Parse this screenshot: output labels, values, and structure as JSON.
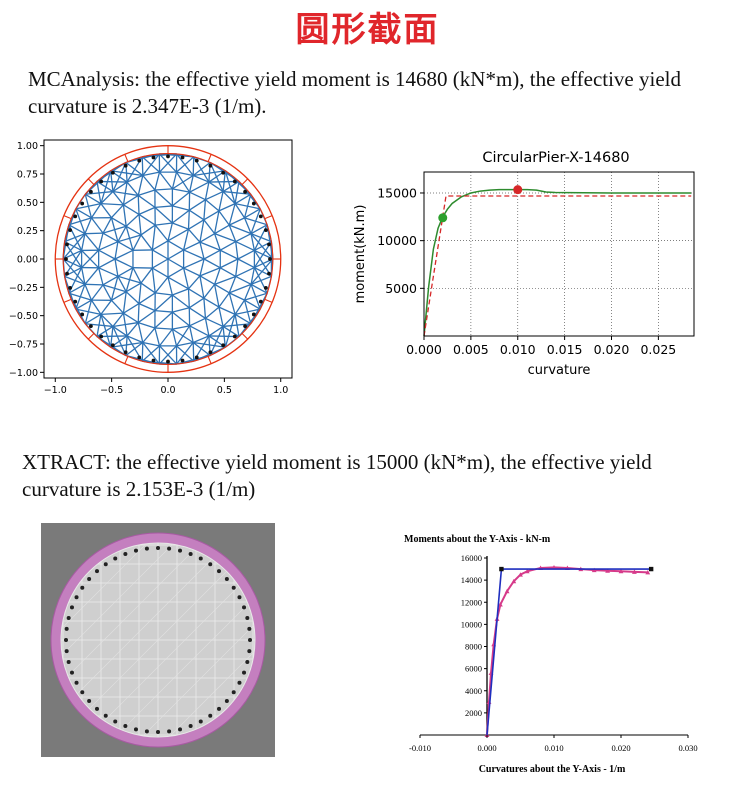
{
  "title": "圆形截面",
  "mc_caption": "MCAnalysis: the effective yield moment is 14680 (kN*m), the effective yield curvature is 2.347E-3 (1/m).",
  "xt_caption": "XTRACT: the effective yield moment is 15000 (kN*m), the effective yield curvature is 2.153E-3 (1/m)",
  "colors": {
    "title": "#e0262b",
    "mesh": "#2f73b4",
    "outline": "#e53312",
    "steel": "#111111",
    "mc_curve": "#2e8b2e",
    "mc_bilinear": "#d62728",
    "xt_curve": "#d63a8a",
    "xt_bilinear": "#1f2fbf"
  },
  "chart_data": [
    {
      "type": "scatter",
      "description_role": "MCAnalysis section mesh plot",
      "xlim": [
        -1.1,
        1.1
      ],
      "ylim": [
        -1.05,
        1.05
      ],
      "xticks": [
        "−1.0",
        "−0.5",
        "0.0",
        "0.5",
        "1.0"
      ],
      "yticks": [
        "1.00",
        "0.75",
        "0.50",
        "0.25",
        "0.00",
        "−0.25",
        "−0.50",
        "−0.75",
        "−1.00"
      ],
      "cover_radius": 1.0,
      "core_radius": 0.93,
      "steel_radius": 0.905,
      "steel_count": 44,
      "cover_segments": 16
    },
    {
      "type": "line",
      "title": "CircularPier-X-14680",
      "xlabel": "curvature",
      "ylabel": "moment(kN.m)",
      "xlim": [
        0,
        0.0288
      ],
      "ylim": [
        0,
        17200
      ],
      "xticks": [
        "0.000",
        "0.005",
        "0.010",
        "0.015",
        "0.020",
        "0.025"
      ],
      "yticks": [
        "5000",
        "10000",
        "15000"
      ],
      "series": [
        {
          "x": [
            0,
            0.0005,
            0.001,
            0.0015,
            0.002,
            0.0025,
            0.003,
            0.004,
            0.005,
            0.006,
            0.007,
            0.008,
            0.009,
            0.01,
            0.011,
            0.012,
            0.013,
            0.014,
            0.02,
            0.0285
          ],
          "y": [
            0,
            5200,
            9100,
            11300,
            12500,
            13300,
            13900,
            14600,
            15000,
            15200,
            15300,
            15350,
            15350,
            15350,
            15350,
            15300,
            15100,
            15050,
            15000,
            15000
          ]
        },
        {
          "x": [
            0,
            0.002347,
            0.0285
          ],
          "y": [
            0,
            14680,
            14680
          ]
        }
      ],
      "points": [
        {
          "x": 0.002,
          "y": 12400,
          "color": "#2ca02c"
        },
        {
          "x": 0.01,
          "y": 15350,
          "color": "#d62728"
        }
      ]
    },
    {
      "type": "scatter",
      "description_role": "XTRACT section view",
      "steel_count": 52
    },
    {
      "type": "line",
      "title": "Moments about the Y-Axis - kN-m",
      "xlabel": "Curvatures about the Y-Axis - 1/m",
      "xlim": [
        -0.01,
        0.03
      ],
      "ylim": [
        0,
        16000
      ],
      "xticks": [
        "-0.010",
        "0.000",
        "0.010",
        "0.020",
        "0.030"
      ],
      "yticks": [
        "2000",
        "4000",
        "6000",
        "8000",
        "10000",
        "12000",
        "14000",
        "16000"
      ],
      "series": [
        {
          "x": [
            0,
            0.0003,
            0.0006,
            0.001,
            0.0015,
            0.002,
            0.003,
            0.004,
            0.005,
            0.006,
            0.008,
            0.01,
            0.012,
            0.014,
            0.016,
            0.018,
            0.02,
            0.022,
            0.024
          ],
          "y": [
            0,
            3000,
            5600,
            8200,
            10500,
            11800,
            13000,
            13900,
            14500,
            14800,
            15100,
            15150,
            15100,
            15000,
            14900,
            14850,
            14800,
            14750,
            14700
          ]
        },
        {
          "x": [
            0,
            0.002153,
            0.0245
          ],
          "y": [
            0,
            15000,
            15000
          ]
        }
      ]
    }
  ]
}
